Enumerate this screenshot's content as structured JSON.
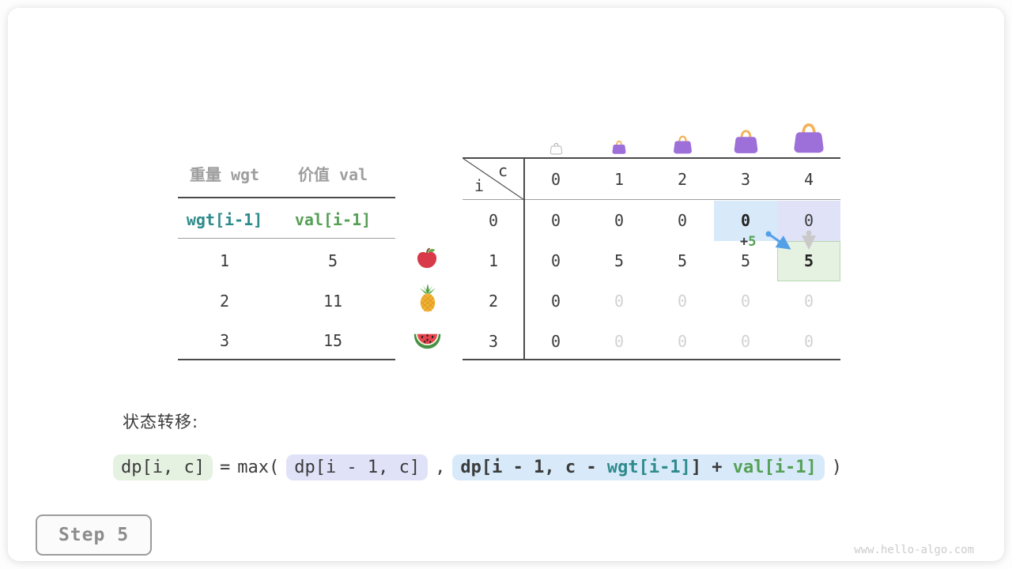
{
  "meta": {
    "step_label": "Step 5",
    "watermark": "www.hello-algo.com"
  },
  "items_table": {
    "headers": [
      "重量 wgt",
      "价值 val"
    ],
    "formula_row": [
      "wgt[i-1]",
      "val[i-1]"
    ],
    "rows": [
      [
        "1",
        "5"
      ],
      [
        "2",
        "11"
      ],
      [
        "3",
        "15"
      ]
    ],
    "fruit_icons": [
      "apple-icon",
      "pineapple-icon",
      "watermelon-icon"
    ]
  },
  "dp_table": {
    "corner_row_var": "i",
    "corner_col_var": "c",
    "col_headers": [
      "0",
      "1",
      "2",
      "3",
      "4"
    ],
    "row_headers": [
      "0",
      "1",
      "2",
      "3"
    ],
    "cells": [
      [
        "0",
        "0",
        "0",
        "0",
        "0"
      ],
      [
        "0",
        "5",
        "5",
        "5",
        "5"
      ],
      [
        "0",
        "0",
        "0",
        "0",
        "0"
      ],
      [
        "0",
        "0",
        "0",
        "0",
        "0"
      ]
    ],
    "cell_styles": [
      [
        "normal",
        "normal",
        "normal",
        "bold",
        "normal"
      ],
      [
        "normal",
        "normal",
        "normal",
        "normal",
        "bold"
      ],
      [
        "normal",
        "dim",
        "dim",
        "dim",
        "dim"
      ],
      [
        "normal",
        "dim",
        "dim",
        "dim",
        "dim"
      ]
    ],
    "bag_icons": [
      "empty-bag-icon",
      "handbag-icon",
      "handbag-icon",
      "handbag-icon",
      "handbag-icon"
    ],
    "highlights": [
      {
        "row": 0,
        "col": 3,
        "type": "blue"
      },
      {
        "row": 0,
        "col": 4,
        "type": "lavender"
      },
      {
        "row": 1,
        "col": 4,
        "type": "green"
      }
    ],
    "annotation": {
      "prefix": "+",
      "value": "5"
    }
  },
  "transition": {
    "label": "状态转移:",
    "segments": [
      {
        "text": "dp[i, c]",
        "box": "green"
      },
      {
        "text": "="
      },
      {
        "text": "max("
      },
      {
        "text": "dp[i - 1, c]",
        "box": "lavender"
      },
      {
        "text": ","
      },
      {
        "box": "blue",
        "parts": [
          {
            "text": "dp[i - 1, c - ",
            "color": "dark"
          },
          {
            "text": "wgt[i-1]",
            "color": "teal"
          },
          {
            "text": "] + ",
            "color": "dark"
          },
          {
            "text": "val[i-1]",
            "color": "green"
          }
        ]
      },
      {
        "text": ")"
      }
    ]
  },
  "colors": {
    "teal": "#2e8b8b",
    "green_text": "#55a055",
    "dim_text": "#d2d2d2",
    "highlight_blue": "#d8eafa",
    "highlight_lavender": "#e0e2f8",
    "highlight_green": "#e5f1e1",
    "highlight_green_border": "#b8d8b2",
    "arrow_blue": "#54a0e8",
    "arrow_gray": "#c9c9c9",
    "bag_purple": "#9d6fd8",
    "bag_handle": "#f2b35c"
  }
}
